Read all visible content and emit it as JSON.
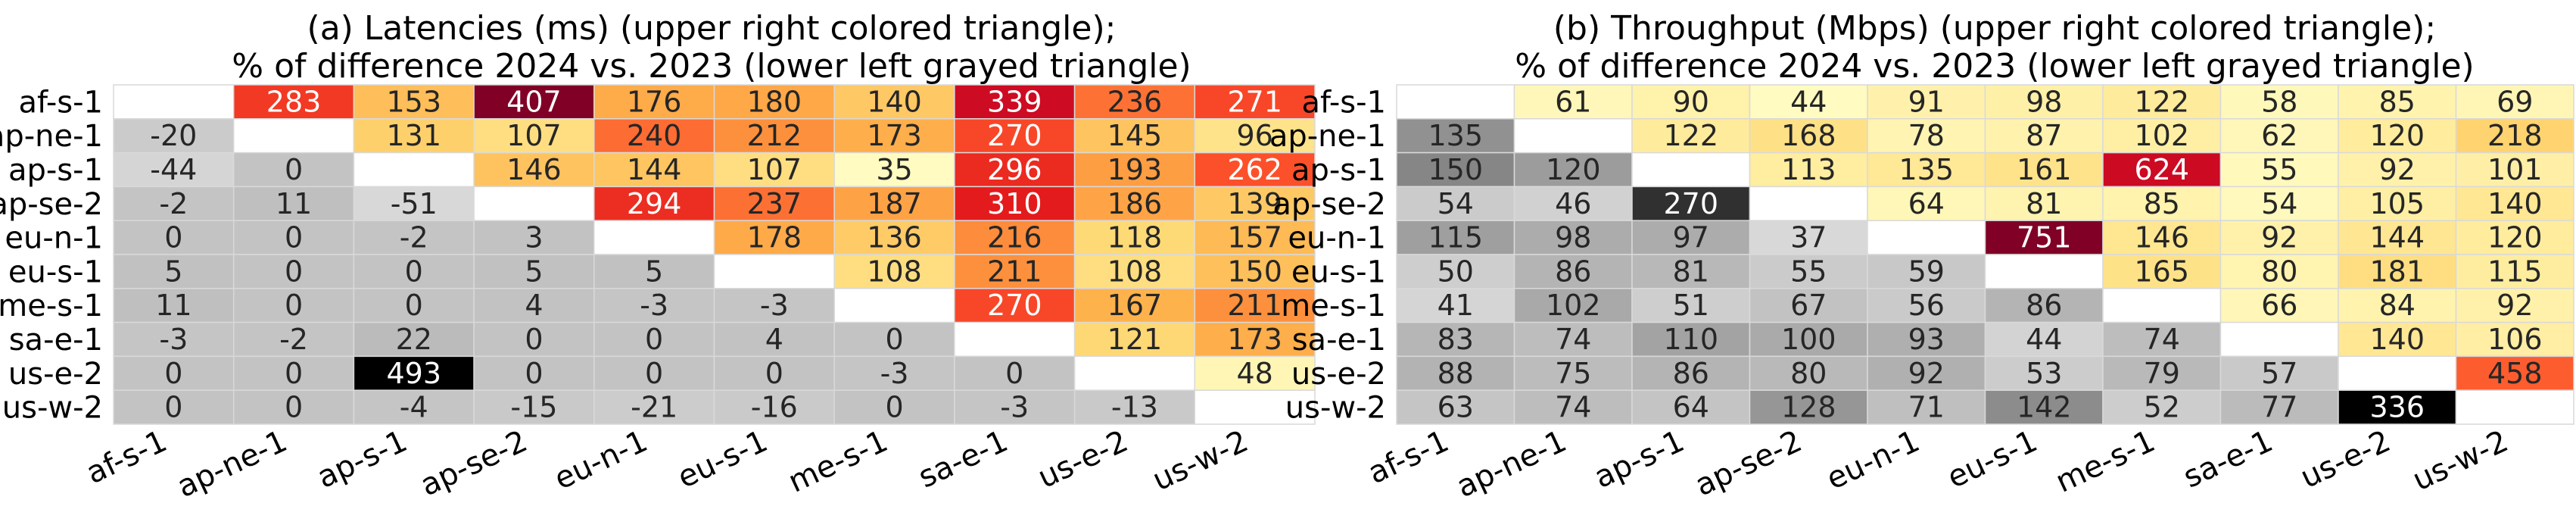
{
  "chart_data": [
    {
      "type": "heatmap",
      "title_line1": "(a) Latencies (ms) (upper right colored triangle);",
      "title_line2": "% of difference 2024 vs. 2023 (lower left grayed triangle)",
      "xlabel": "",
      "ylabel": "",
      "categories": [
        "af-s-1",
        "ap-ne-1",
        "ap-s-1",
        "ap-se-2",
        "eu-n-1",
        "eu-s-1",
        "me-s-1",
        "sa-e-1",
        "us-e-2",
        "us-w-2"
      ],
      "upper_colormap": "YlOrRd",
      "lower_colormap": "Greys",
      "values": [
        [
          null,
          283,
          153,
          407,
          176,
          180,
          140,
          339,
          236,
          271
        ],
        [
          -20,
          null,
          131,
          107,
          240,
          212,
          173,
          270,
          145,
          96
        ],
        [
          -44,
          0,
          null,
          146,
          144,
          107,
          35,
          296,
          193,
          262
        ],
        [
          -2,
          11,
          -51,
          null,
          294,
          237,
          187,
          310,
          186,
          139
        ],
        [
          0,
          0,
          -2,
          3,
          null,
          178,
          136,
          216,
          118,
          157
        ],
        [
          5,
          0,
          0,
          5,
          5,
          null,
          108,
          211,
          108,
          150
        ],
        [
          11,
          0,
          0,
          4,
          -3,
          -3,
          null,
          270,
          167,
          211
        ],
        [
          -3,
          -2,
          22,
          0,
          0,
          4,
          0,
          null,
          121,
          173
        ],
        [
          0,
          0,
          493,
          0,
          0,
          0,
          -3,
          0,
          null,
          48
        ],
        [
          0,
          0,
          -4,
          -15,
          -21,
          -16,
          0,
          -3,
          -13,
          null
        ]
      ]
    },
    {
      "type": "heatmap",
      "title_line1": "(b) Throughput (Mbps) (upper right colored triangle);",
      "title_line2": "% of difference 2024 vs. 2023 (lower left grayed triangle)",
      "xlabel": "",
      "ylabel": "",
      "categories": [
        "af-s-1",
        "ap-ne-1",
        "ap-s-1",
        "ap-se-2",
        "eu-n-1",
        "eu-s-1",
        "me-s-1",
        "sa-e-1",
        "us-e-2",
        "us-w-2"
      ],
      "upper_colormap": "YlOrRd",
      "lower_colormap": "Greys",
      "values": [
        [
          null,
          61,
          90,
          44,
          91,
          98,
          122,
          58,
          85,
          69
        ],
        [
          135,
          null,
          122,
          168,
          78,
          87,
          102,
          62,
          120,
          218
        ],
        [
          150,
          120,
          null,
          113,
          135,
          161,
          624,
          55,
          92,
          101
        ],
        [
          54,
          46,
          270,
          null,
          64,
          81,
          85,
          54,
          105,
          140
        ],
        [
          115,
          98,
          97,
          37,
          null,
          751,
          146,
          92,
          144,
          120
        ],
        [
          50,
          86,
          81,
          55,
          59,
          null,
          165,
          80,
          181,
          115
        ],
        [
          41,
          102,
          51,
          67,
          56,
          86,
          null,
          66,
          84,
          92
        ],
        [
          83,
          74,
          110,
          100,
          93,
          44,
          74,
          null,
          140,
          106
        ],
        [
          88,
          75,
          86,
          80,
          92,
          53,
          79,
          57,
          null,
          458
        ],
        [
          63,
          74,
          64,
          128,
          71,
          142,
          52,
          77,
          336,
          null
        ]
      ]
    }
  ]
}
